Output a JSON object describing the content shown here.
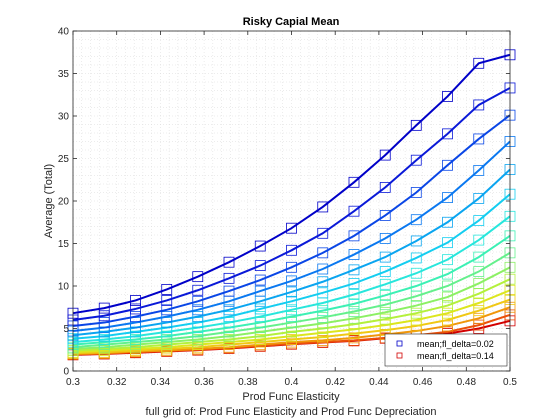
{
  "chart_data": {
    "type": "line",
    "title": "Risky Capial Mean",
    "xlabel": "Prod Func Elasticity",
    "ylabel": "Average (Total)",
    "footnote": "full grid of: Prod Func Elasticity and Prod Func Depreciation",
    "xlim": [
      0.3,
      0.5
    ],
    "ylim": [
      0,
      40
    ],
    "xticks": [
      0.3,
      0.32,
      0.34,
      0.36,
      0.38,
      0.4,
      0.42,
      0.44,
      0.46,
      0.48,
      0.5
    ],
    "yticks": [
      0,
      5,
      10,
      15,
      20,
      25,
      30,
      35,
      40
    ],
    "grid": "minor dotted",
    "legend_position": "bottom-right",
    "x": [
      0.3,
      0.3143,
      0.3286,
      0.3429,
      0.3571,
      0.3714,
      0.3857,
      0.4,
      0.4143,
      0.4286,
      0.4429,
      0.4571,
      0.4714,
      0.4857,
      0.5
    ],
    "series_label_first": "mean;fl_delta=0.02",
    "series_label_last": "mean;fl_delta=0.14",
    "series": [
      {
        "color": "#0000c8",
        "values": [
          6.8,
          7.4,
          8.3,
          9.6,
          11.1,
          12.8,
          14.7,
          16.8,
          19.3,
          22.2,
          25.4,
          28.9,
          32.3,
          36.2,
          37.2
        ]
      },
      {
        "color": "#0a19d8",
        "values": [
          6.0,
          6.5,
          7.3,
          8.3,
          9.5,
          10.9,
          12.4,
          14.2,
          16.2,
          18.8,
          21.6,
          24.8,
          27.9,
          31.3,
          33.3
        ]
      },
      {
        "color": "#0a46e6",
        "values": [
          5.3,
          5.7,
          6.4,
          7.2,
          8.2,
          9.4,
          10.7,
          12.2,
          13.9,
          15.9,
          18.3,
          21.0,
          24.2,
          27.3,
          30.1
        ]
      },
      {
        "color": "#0a78f0",
        "values": [
          4.7,
          5.1,
          5.7,
          6.4,
          7.2,
          8.2,
          9.4,
          10.6,
          12.0,
          13.7,
          15.6,
          17.8,
          20.4,
          23.6,
          27.0
        ]
      },
      {
        "color": "#0aa5f0",
        "values": [
          4.2,
          4.6,
          5.1,
          5.7,
          6.4,
          7.2,
          8.2,
          9.3,
          10.5,
          11.9,
          13.4,
          15.3,
          17.5,
          20.3,
          23.7
        ]
      },
      {
        "color": "#14cdf0",
        "values": [
          3.8,
          4.1,
          4.6,
          5.1,
          5.7,
          6.4,
          7.3,
          8.2,
          9.2,
          10.3,
          11.7,
          13.3,
          15.1,
          17.7,
          20.8
        ]
      },
      {
        "color": "#28e6dc",
        "values": [
          3.4,
          3.7,
          4.1,
          4.6,
          5.1,
          5.7,
          6.4,
          7.2,
          8.0,
          9.0,
          10.2,
          11.5,
          13.1,
          15.4,
          18.2
        ]
      },
      {
        "color": "#3cf0b4",
        "values": [
          3.1,
          3.4,
          3.7,
          4.1,
          4.6,
          5.1,
          5.7,
          6.4,
          7.1,
          7.9,
          8.9,
          10.0,
          11.4,
          13.4,
          15.9
        ]
      },
      {
        "color": "#64f08c",
        "values": [
          2.8,
          3.1,
          3.4,
          3.7,
          4.1,
          4.6,
          5.1,
          5.7,
          6.3,
          7.0,
          7.8,
          8.8,
          10.0,
          11.7,
          13.9
        ]
      },
      {
        "color": "#8cf064",
        "values": [
          2.6,
          2.8,
          3.1,
          3.4,
          3.7,
          4.1,
          4.6,
          5.1,
          5.6,
          6.2,
          6.9,
          7.7,
          8.7,
          10.3,
          12.2
        ]
      },
      {
        "color": "#b4f03c",
        "values": [
          2.4,
          2.6,
          2.8,
          3.1,
          3.4,
          3.7,
          4.1,
          4.6,
          5.0,
          5.5,
          6.1,
          6.8,
          7.7,
          9.1,
          10.8
        ]
      },
      {
        "color": "#dce61e",
        "values": [
          2.2,
          2.4,
          2.6,
          2.8,
          3.1,
          3.4,
          3.7,
          4.1,
          4.5,
          4.9,
          5.4,
          6.0,
          6.8,
          8.0,
          9.5
        ]
      },
      {
        "color": "#f0c814",
        "values": [
          2.1,
          2.2,
          2.4,
          2.6,
          2.8,
          3.1,
          3.4,
          3.7,
          4.0,
          4.4,
          4.8,
          5.3,
          6.0,
          7.1,
          8.4
        ]
      },
      {
        "color": "#f0960a",
        "values": [
          2.0,
          2.1,
          2.3,
          2.4,
          2.6,
          2.8,
          3.1,
          3.4,
          3.6,
          3.9,
          4.3,
          4.7,
          5.3,
          6.2,
          7.5
        ]
      },
      {
        "color": "#eb500a",
        "values": [
          1.95,
          2.05,
          2.2,
          2.35,
          2.5,
          2.7,
          2.95,
          3.2,
          3.4,
          3.6,
          3.9,
          4.2,
          4.6,
          5.4,
          6.6
        ]
      },
      {
        "color": "#d20000",
        "values": [
          1.9,
          2.0,
          2.15,
          2.3,
          2.45,
          2.65,
          2.9,
          3.15,
          3.35,
          3.55,
          3.85,
          4.1,
          4.4,
          5.0,
          5.9
        ]
      }
    ]
  }
}
